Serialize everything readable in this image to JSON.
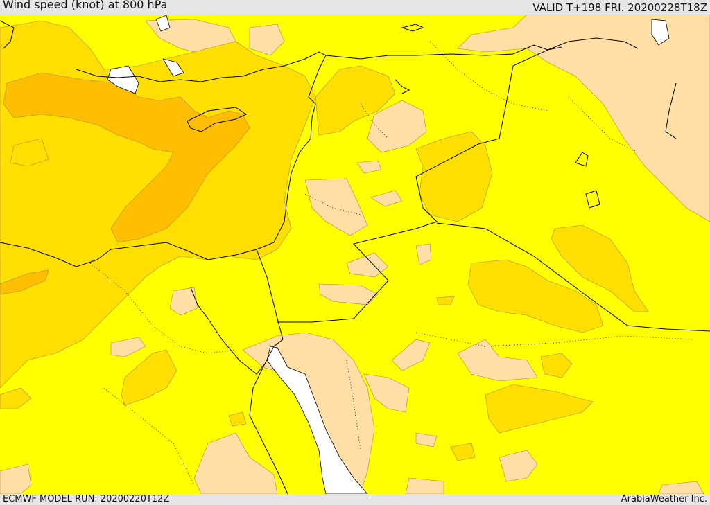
{
  "header": {
    "title": "Wind speed (knot) at 800 hPa",
    "valid": "VALID T+198 FRI. 20200228T18Z"
  },
  "footer": {
    "model_run": "ECMWF MODEL RUN: 20200220T12Z",
    "credit": "ArabiaWeather Inc."
  },
  "colors": {
    "base_band": "#ffff00",
    "light_band": "#ffdfa6",
    "mid_band": "#ffdf00",
    "strong_band": "#ffbf00",
    "sea_white": "#ffffff",
    "border_line": "#000000"
  }
}
